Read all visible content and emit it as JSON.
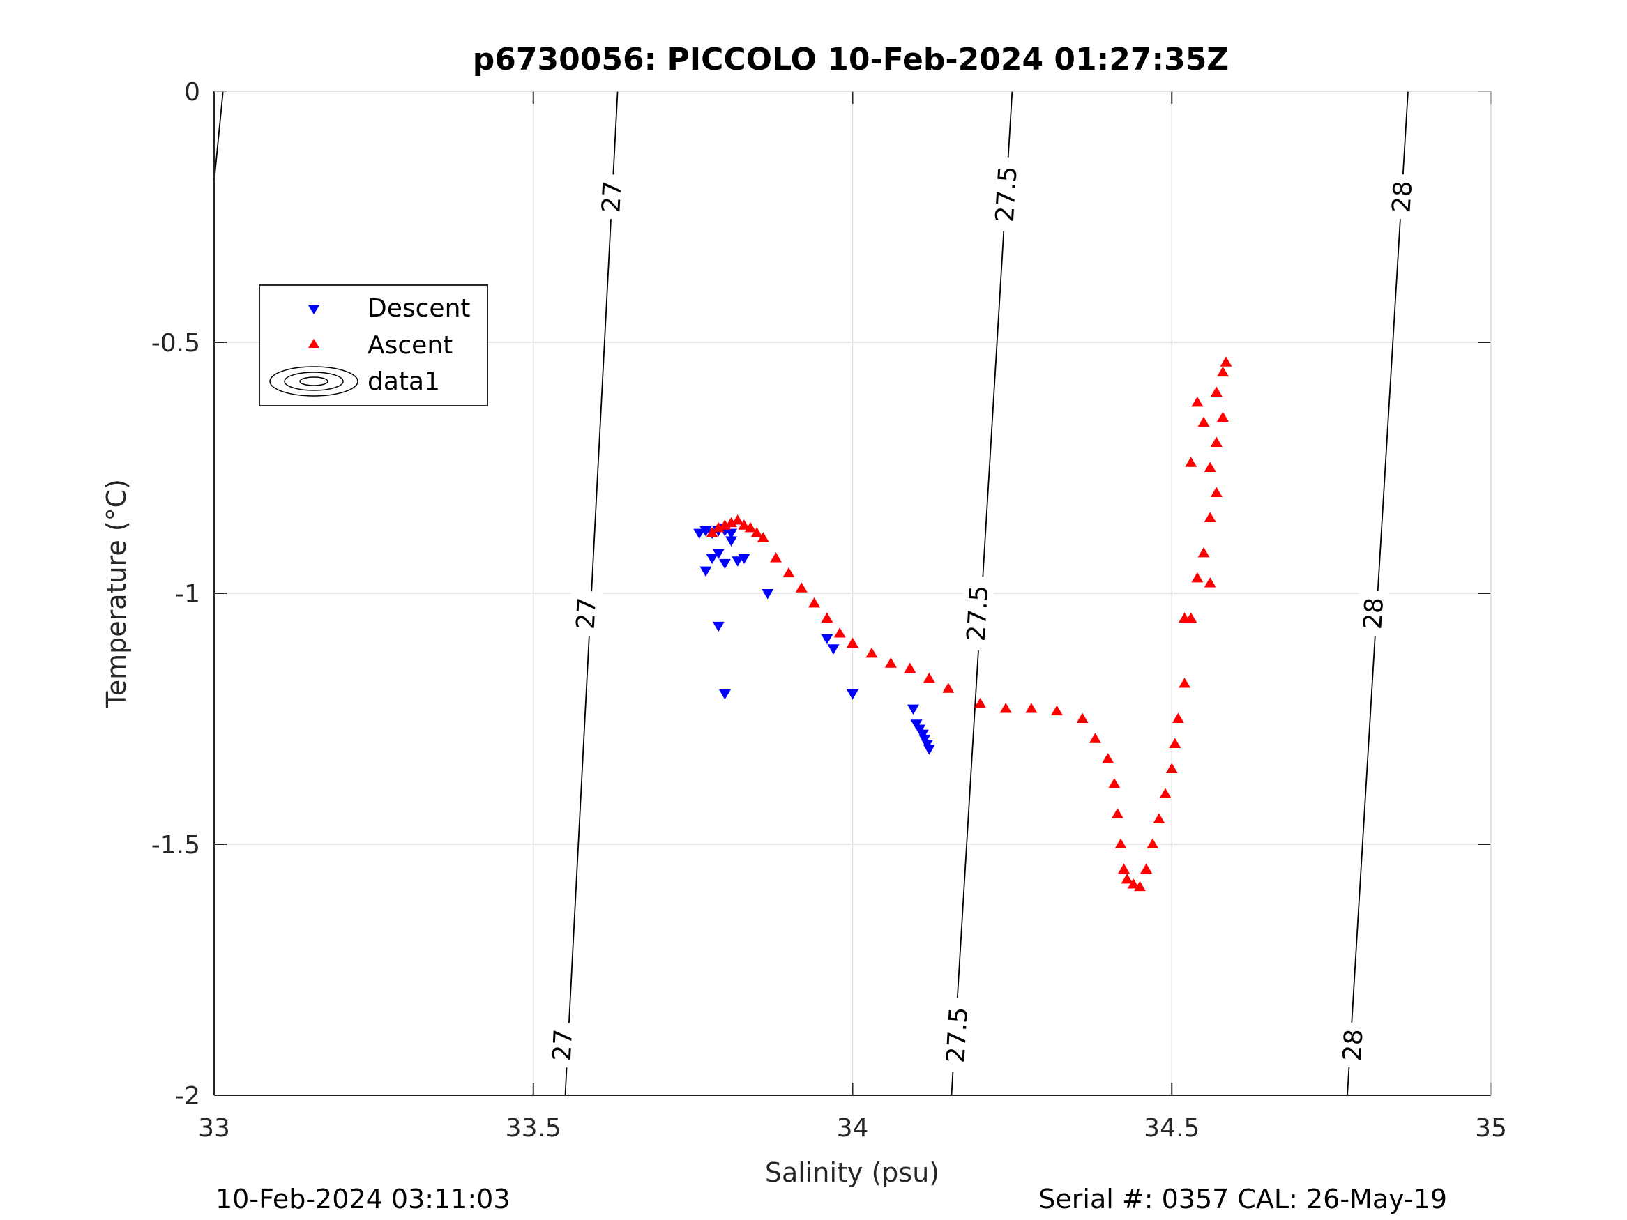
{
  "chart_data": {
    "type": "scatter",
    "title": "p6730056: PICCOLO 10-Feb-2024 01:27:35Z",
    "xlabel": "Salinity (psu)",
    "ylabel": "Temperature (°C)",
    "xlim": [
      33,
      35
    ],
    "ylim": [
      -2,
      0
    ],
    "xticks": [
      "33",
      "33.5",
      "34",
      "34.5",
      "35"
    ],
    "yticks": [
      "0",
      "-0.5",
      "-1",
      "-1.5",
      "-2"
    ],
    "grid": true,
    "legend_position": "upper-left",
    "footer_left": "10-Feb-2024 03:11:03",
    "footer_right": "Serial #: 0357  CAL: 26-May-19",
    "colors": {
      "descent": "#0000ff",
      "ascent": "#ff0000",
      "contour": "#000000"
    },
    "contours": [
      {
        "label": "27",
        "points": [
          [
            33.632,
            0
          ],
          [
            33.55,
            -2
          ]
        ],
        "label_positions": [
          [
            33.622,
            -0.21
          ],
          [
            33.582,
            -1.04
          ],
          [
            33.545,
            -1.9
          ]
        ]
      },
      {
        "label": "27.5",
        "points": [
          [
            34.25,
            0
          ],
          [
            34.155,
            -2
          ]
        ],
        "label_positions": [
          [
            34.24,
            -0.205
          ],
          [
            34.195,
            -1.04
          ],
          [
            34.163,
            -1.88
          ]
        ]
      },
      {
        "label": "28",
        "points": [
          [
            34.87,
            0
          ],
          [
            34.775,
            -2
          ]
        ],
        "label_positions": [
          [
            34.86,
            -0.21
          ],
          [
            34.815,
            -1.04
          ],
          [
            34.783,
            -1.9
          ]
        ]
      },
      {
        "label": "",
        "points": [
          [
            33.014,
            0
          ],
          [
            33.0,
            -0.18
          ]
        ],
        "label_positions": []
      }
    ],
    "series": [
      {
        "name": "Descent",
        "marker": "triangle-down",
        "color": "#0000ff",
        "x": [
          33.76,
          33.77,
          33.78,
          33.79,
          33.8,
          33.81,
          33.8,
          33.78,
          33.79,
          33.77,
          33.8,
          33.81,
          33.82,
          33.83,
          33.79,
          33.8,
          33.867,
          33.96,
          33.97,
          34.0,
          34.095,
          34.1,
          34.105,
          34.11,
          34.113,
          34.117,
          34.12
        ],
        "y": [
          -0.88,
          -0.875,
          -0.88,
          -0.875,
          -0.875,
          -0.88,
          -0.87,
          -0.93,
          -0.92,
          -0.955,
          -0.94,
          -0.895,
          -0.935,
          -0.93,
          -1.065,
          -1.2,
          -1.0,
          -1.09,
          -1.11,
          -1.2,
          -1.23,
          -1.26,
          -1.27,
          -1.28,
          -1.29,
          -1.3,
          -1.31
        ]
      },
      {
        "name": "Ascent",
        "marker": "triangle-up",
        "color": "#ff0000",
        "x": [
          33.78,
          33.79,
          33.8,
          33.81,
          33.82,
          33.83,
          33.84,
          33.85,
          33.86,
          33.88,
          33.9,
          33.92,
          33.94,
          33.96,
          33.98,
          34.0,
          34.03,
          34.06,
          34.09,
          34.12,
          34.15,
          34.2,
          34.24,
          34.28,
          34.32,
          34.36,
          34.38,
          34.4,
          34.41,
          34.415,
          34.42,
          34.425,
          34.43,
          34.44,
          34.45,
          34.46,
          34.47,
          34.48,
          34.49,
          34.5,
          34.505,
          34.51,
          34.52,
          34.53,
          34.54,
          34.55,
          34.56,
          34.57,
          34.56,
          34.57,
          34.58,
          34.57,
          34.58,
          34.585,
          34.52,
          34.53,
          34.54,
          34.55,
          34.56
        ],
        "y": [
          -0.88,
          -0.87,
          -0.865,
          -0.86,
          -0.855,
          -0.865,
          -0.87,
          -0.88,
          -0.89,
          -0.93,
          -0.96,
          -0.99,
          -1.02,
          -1.05,
          -1.08,
          -1.1,
          -1.12,
          -1.14,
          -1.15,
          -1.17,
          -1.19,
          -1.22,
          -1.23,
          -1.23,
          -1.235,
          -1.25,
          -1.29,
          -1.33,
          -1.38,
          -1.44,
          -1.5,
          -1.55,
          -1.57,
          -1.58,
          -1.585,
          -1.55,
          -1.5,
          -1.45,
          -1.4,
          -1.35,
          -1.3,
          -1.25,
          -1.18,
          -1.05,
          -0.97,
          -0.92,
          -0.85,
          -0.8,
          -0.75,
          -0.7,
          -0.65,
          -0.6,
          -0.56,
          -0.54,
          -1.05,
          -0.74,
          -0.62,
          -0.66,
          -0.98
        ]
      }
    ]
  },
  "legend": {
    "items": [
      {
        "label": "Descent"
      },
      {
        "label": "Ascent"
      },
      {
        "label": "data1"
      }
    ]
  }
}
